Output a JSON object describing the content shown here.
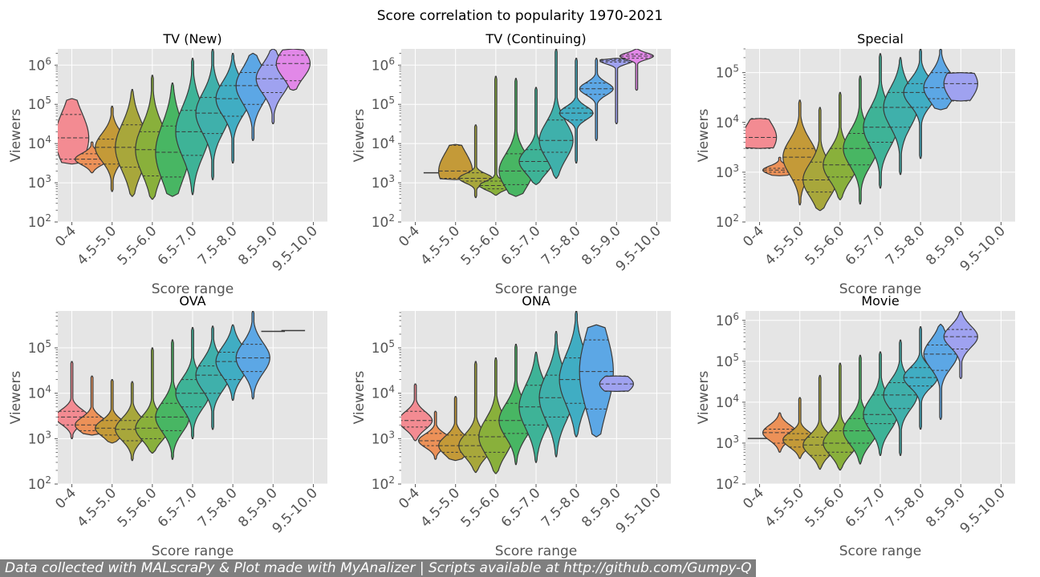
{
  "title": "Score correlation to popularity 1970-2021",
  "footer": "Data collected with MALscraPy & Plot made with MyAnalizer | Scripts available at http://github.com/Gumpy-Q",
  "colors": {
    "plot_background": "#e5e5e5",
    "grid": "#ffffff",
    "violins": [
      "#f38b92",
      "#ec9158",
      "#c49a38",
      "#a8a73b",
      "#89b03b",
      "#48b663",
      "#3eb397",
      "#3fb0ab",
      "#40adc3",
      "#5ca7e5",
      "#9fa2f0",
      "#e288e8"
    ]
  },
  "chart_data": [
    {
      "type": "violin",
      "title": "TV (New)",
      "xlabel": "Score range",
      "ylabel": "Viewers",
      "yscale": "log",
      "ylim": [
        100,
        2600000
      ],
      "categories": [
        "0-4",
        "4.5-5.0",
        "5.5-6.0",
        "6.5-7.0",
        "7.5-8.0",
        "8.5-9.0",
        "9.5-10.0"
      ],
      "yticks": [
        "10^2",
        "10^3",
        "10^4",
        "10^5",
        "10^6"
      ],
      "grid": true,
      "violins": [
        {
          "c": 0,
          "x": 0,
          "min": 3000,
          "max": 140000,
          "q1": 4000,
          "med": 14000,
          "q3": 55000
        },
        {
          "c": 1,
          "x": 0.5,
          "min": 1800,
          "max": 11000,
          "q1": 3000,
          "med": 4000,
          "q3": 5500
        },
        {
          "c": 2,
          "x": 1,
          "min": 600,
          "max": 90000,
          "q1": 3000,
          "med": 8000,
          "q3": 13000
        },
        {
          "c": 3,
          "x": 1.5,
          "min": 450,
          "max": 240000,
          "q1": 2500,
          "med": 8000,
          "q3": 30000
        },
        {
          "c": 4,
          "x": 2,
          "min": 380,
          "max": 550000,
          "q1": 1500,
          "med": 7000,
          "q3": 20000
        },
        {
          "c": 5,
          "x": 2.5,
          "min": 450,
          "max": 350000,
          "q1": 1400,
          "med": 6000,
          "q3": 28000
        },
        {
          "c": 6,
          "x": 3,
          "min": 500,
          "max": 1500000,
          "q1": 5000,
          "med": 20000,
          "q3": 70000
        },
        {
          "c": 7,
          "x": 3.5,
          "min": 1200,
          "max": 2600000,
          "q1": 18000,
          "med": 60000,
          "q3": 150000
        },
        {
          "c": 8,
          "x": 4,
          "min": 3200,
          "max": 2000000,
          "q1": 50000,
          "med": 140000,
          "q3": 300000
        },
        {
          "c": 9,
          "x": 4.5,
          "min": 12000,
          "max": 2000000,
          "q1": 100000,
          "med": 300000,
          "q3": 650000
        },
        {
          "c": 10,
          "x": 5,
          "min": 32000,
          "max": 2600000,
          "q1": 200000,
          "med": 450000,
          "q3": 1000000
        },
        {
          "c": 11,
          "x": 5.5,
          "min": 230000,
          "max": 2600000,
          "q1": 400000,
          "med": 1100000,
          "q3": 1800000
        }
      ]
    },
    {
      "type": "violin",
      "title": "TV (Continuing)",
      "xlabel": "Score range",
      "ylabel": "Viewers",
      "yscale": "log",
      "ylim": [
        100,
        2600000
      ],
      "categories": [
        "0-4",
        "4.5-5.0",
        "5.5-6.0",
        "6.5-7.0",
        "7.5-8.0",
        "8.5-9.0",
        "9.5-10.0"
      ],
      "yticks": [
        "10^2",
        "10^3",
        "10^4",
        "10^5",
        "10^6"
      ],
      "grid": true,
      "violins": [
        {
          "c": 1,
          "x": 0.5,
          "min": 1800,
          "max": 1800,
          "q1": 1800,
          "med": 1800,
          "q3": 1800
        },
        {
          "c": 2,
          "x": 1,
          "min": 1200,
          "max": 9500,
          "q1": 1300,
          "med": 2000,
          "q3": 9000
        },
        {
          "c": 3,
          "x": 1.5,
          "min": 420,
          "max": 30000,
          "q1": 1100,
          "med": 1300,
          "q3": 1800
        },
        {
          "c": 4,
          "x": 2,
          "min": 480,
          "max": 520000,
          "q1": 700,
          "med": 850,
          "q3": 1100
        },
        {
          "c": 5,
          "x": 2.5,
          "min": 450,
          "max": 460000,
          "q1": 900,
          "med": 2000,
          "q3": 5500
        },
        {
          "c": 6,
          "x": 3,
          "min": 900,
          "max": 270000,
          "q1": 2000,
          "med": 3500,
          "q3": 7000
        },
        {
          "c": 7,
          "x": 3.5,
          "min": 1300,
          "max": 2600000,
          "q1": 6000,
          "med": 12000,
          "q3": 40000
        },
        {
          "c": 8,
          "x": 4,
          "min": 3200,
          "max": 1500000,
          "q1": 40000,
          "med": 60000,
          "q3": 80000
        },
        {
          "c": 9,
          "x": 4.5,
          "min": 12000,
          "max": 1500000,
          "q1": 180000,
          "med": 250000,
          "q3": 350000
        },
        {
          "c": 10,
          "x": 5,
          "min": 32000,
          "max": 1500000,
          "q1": 1200000,
          "med": 1300000,
          "q3": 1400000
        },
        {
          "c": 11,
          "x": 5.5,
          "min": 230000,
          "max": 2600000,
          "q1": 1500000,
          "med": 1700000,
          "q3": 1900000
        }
      ]
    },
    {
      "type": "violin",
      "title": "Special",
      "xlabel": "Score range",
      "ylabel": "Viewers",
      "yscale": "log",
      "ylim": [
        100,
        300000
      ],
      "categories": [
        "0-4",
        "4.5-5.0",
        "5.5-6.0",
        "6.5-7.0",
        "7.5-8.0",
        "8.5-9.0",
        "9.5-10.0"
      ],
      "yticks": [
        "10^2",
        "10^3",
        "10^4",
        "10^5"
      ],
      "grid": true,
      "violins": [
        {
          "c": 0,
          "x": 0,
          "min": 3000,
          "max": 12000,
          "q1": 3000,
          "med": 5000,
          "q3": 12000
        },
        {
          "c": 1,
          "x": 0.5,
          "min": 850,
          "max": 2000,
          "q1": 1000,
          "med": 1100,
          "q3": 1200
        },
        {
          "c": 2,
          "x": 1,
          "min": 220,
          "max": 28000,
          "q1": 700,
          "med": 2000,
          "q3": 3000
        },
        {
          "c": 3,
          "x": 1.5,
          "min": 170,
          "max": 20000,
          "q1": 400,
          "med": 700,
          "q3": 1600
        },
        {
          "c": 4,
          "x": 2,
          "min": 280,
          "max": 40000,
          "q1": 800,
          "med": 1400,
          "q3": 3000
        },
        {
          "c": 5,
          "x": 2.5,
          "min": 230,
          "max": 85000,
          "q1": 1400,
          "med": 3000,
          "q3": 6000
        },
        {
          "c": 6,
          "x": 3,
          "min": 480,
          "max": 240000,
          "q1": 4000,
          "med": 8000,
          "q3": 20000
        },
        {
          "c": 7,
          "x": 3.5,
          "min": 900,
          "max": 200000,
          "q1": 8000,
          "med": 20000,
          "q3": 40000
        },
        {
          "c": 8,
          "x": 4,
          "min": 1900,
          "max": 300000,
          "q1": 20000,
          "med": 40000,
          "q3": 60000
        },
        {
          "c": 9,
          "x": 4.5,
          "min": 18000,
          "max": 300000,
          "q1": 30000,
          "med": 50000,
          "q3": 100000
        },
        {
          "c": 10,
          "x": 5,
          "min": 27000,
          "max": 100000,
          "q1": 27000,
          "med": 60000,
          "q3": 100000
        }
      ]
    },
    {
      "type": "violin",
      "title": "OVA",
      "xlabel": "Score range",
      "ylabel": "Viewers",
      "yscale": "log",
      "ylim": [
        100,
        650000
      ],
      "categories": [
        "0-4",
        "4.5-5.0",
        "5.5-6.0",
        "6.5-7.0",
        "7.5-8.0",
        "8.5-9.0",
        "9.5-10.0"
      ],
      "yticks": [
        "10^2",
        "10^3",
        "10^4",
        "10^5"
      ],
      "grid": true,
      "violins": [
        {
          "c": 0,
          "x": 0,
          "min": 1000,
          "max": 50000,
          "q1": 2000,
          "med": 3000,
          "q3": 4000
        },
        {
          "c": 1,
          "x": 0.5,
          "min": 1200,
          "max": 24000,
          "q1": 1500,
          "med": 2000,
          "q3": 3000
        },
        {
          "c": 2,
          "x": 1,
          "min": 800,
          "max": 20000,
          "q1": 1200,
          "med": 1700,
          "q3": 2500
        },
        {
          "c": 3,
          "x": 1.5,
          "min": 330,
          "max": 18000,
          "q1": 900,
          "med": 1600,
          "q3": 2500
        },
        {
          "c": 4,
          "x": 2,
          "min": 480,
          "max": 100000,
          "q1": 1000,
          "med": 1700,
          "q3": 3000
        },
        {
          "c": 5,
          "x": 2.5,
          "min": 350,
          "max": 150000,
          "q1": 1500,
          "med": 3000,
          "q3": 6000
        },
        {
          "c": 6,
          "x": 3,
          "min": 1000,
          "max": 280000,
          "q1": 5000,
          "med": 10000,
          "q3": 20000
        },
        {
          "c": 7,
          "x": 3.5,
          "min": 1600,
          "max": 300000,
          "q1": 10000,
          "med": 25000,
          "q3": 40000
        },
        {
          "c": 8,
          "x": 4,
          "min": 7000,
          "max": 320000,
          "q1": 20000,
          "med": 50000,
          "q3": 80000
        },
        {
          "c": 9,
          "x": 4.5,
          "min": 7500,
          "max": 650000,
          "q1": 30000,
          "med": 60000,
          "q3": 120000
        },
        {
          "c": 10,
          "x": 5,
          "min": 230000,
          "max": 230000,
          "q1": 230000,
          "med": 230000,
          "q3": 230000
        },
        {
          "c": 11,
          "x": 5.5,
          "min": 240000,
          "max": 240000,
          "q1": 240000,
          "med": 240000,
          "q3": 240000
        }
      ]
    },
    {
      "type": "violin",
      "title": "ONA",
      "xlabel": "Score range",
      "ylabel": "Viewers",
      "yscale": "log",
      "ylim": [
        100,
        650000
      ],
      "categories": [
        "0-4",
        "4.5-5.0",
        "5.5-6.0",
        "6.5-7.0",
        "7.5-8.0",
        "8.5-9.0",
        "9.5-10.0"
      ],
      "yticks": [
        "10^2",
        "10^3",
        "10^4",
        "10^5"
      ],
      "grid": true,
      "violins": [
        {
          "c": 0,
          "x": 0,
          "min": 900,
          "max": 16000,
          "q1": 1800,
          "med": 2500,
          "q3": 4000
        },
        {
          "c": 1,
          "x": 0.5,
          "min": 350,
          "max": 4000,
          "q1": 700,
          "med": 900,
          "q3": 1300
        },
        {
          "c": 2,
          "x": 1,
          "min": 330,
          "max": 8500,
          "q1": 500,
          "med": 700,
          "q3": 1200
        },
        {
          "c": 3,
          "x": 1.5,
          "min": 180,
          "max": 50000,
          "q1": 400,
          "med": 700,
          "q3": 1200
        },
        {
          "c": 4,
          "x": 2,
          "min": 170,
          "max": 60000,
          "q1": 500,
          "med": 1100,
          "q3": 2500
        },
        {
          "c": 5,
          "x": 2.5,
          "min": 270,
          "max": 120000,
          "q1": 1300,
          "med": 2500,
          "q3": 6000
        },
        {
          "c": 6,
          "x": 3,
          "min": 300,
          "max": 80000,
          "q1": 2000,
          "med": 5000,
          "q3": 15000
        },
        {
          "c": 7,
          "x": 3.5,
          "min": 400,
          "max": 230000,
          "q1": 3000,
          "med": 8000,
          "q3": 25000
        },
        {
          "c": 8,
          "x": 4,
          "min": 1100,
          "max": 650000,
          "q1": 6000,
          "med": 20000,
          "q3": 60000
        },
        {
          "c": 9,
          "x": 4.5,
          "min": 1100,
          "max": 320000,
          "q1": 4500,
          "med": 30000,
          "q3": 150000
        },
        {
          "c": 10,
          "x": 5,
          "min": 11000,
          "max": 24000,
          "q1": 11000,
          "med": 16000,
          "q3": 24000
        }
      ]
    },
    {
      "type": "violin",
      "title": "Movie",
      "xlabel": "Score range",
      "ylabel": "Viewers",
      "yscale": "log",
      "ylim": [
        100,
        1700000
      ],
      "categories": [
        "0-4",
        "4.5-5.0",
        "5.5-6.0",
        "6.5-7.0",
        "7.5-8.0",
        "8.5-9.0",
        "9.5-10.0"
      ],
      "yticks": [
        "10^2",
        "10^3",
        "10^4",
        "10^5",
        "10^6"
      ],
      "grid": true,
      "violins": [
        {
          "c": 0,
          "x": 0,
          "min": 1300,
          "max": 1300,
          "q1": 1300,
          "med": 1300,
          "q3": 1300
        },
        {
          "c": 1,
          "x": 0.5,
          "min": 600,
          "max": 5500,
          "q1": 1000,
          "med": 1800,
          "q3": 2200
        },
        {
          "c": 2,
          "x": 1,
          "min": 420,
          "max": 13000,
          "q1": 800,
          "med": 1200,
          "q3": 1700
        },
        {
          "c": 3,
          "x": 1.5,
          "min": 230,
          "max": 45000,
          "q1": 500,
          "med": 900,
          "q3": 1400
        },
        {
          "c": 4,
          "x": 2,
          "min": 220,
          "max": 90000,
          "q1": 600,
          "med": 1000,
          "q3": 2000
        },
        {
          "c": 5,
          "x": 2.5,
          "min": 310,
          "max": 140000,
          "q1": 1000,
          "med": 2000,
          "q3": 4000
        },
        {
          "c": 6,
          "x": 3,
          "min": 500,
          "max": 170000,
          "q1": 3000,
          "med": 5000,
          "q3": 15000
        },
        {
          "c": 7,
          "x": 3.5,
          "min": 500,
          "max": 330000,
          "q1": 7000,
          "med": 15000,
          "q3": 30000
        },
        {
          "c": 8,
          "x": 4,
          "min": 2200,
          "max": 700000,
          "q1": 25000,
          "med": 40000,
          "q3": 70000
        },
        {
          "c": 9,
          "x": 4.5,
          "min": 3800,
          "max": 800000,
          "q1": 60000,
          "med": 150000,
          "q3": 250000
        },
        {
          "c": 10,
          "x": 5,
          "min": 38000,
          "max": 1700000,
          "q1": 200000,
          "med": 400000,
          "q3": 600000
        }
      ]
    }
  ]
}
